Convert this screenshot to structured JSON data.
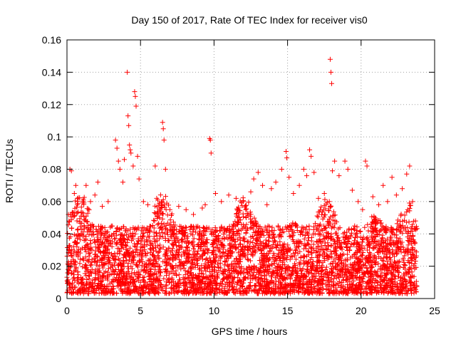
{
  "chart_data": {
    "type": "scatter",
    "title": "Day 150 of 2017, Rate Of TEC Index for receiver vis0",
    "xlabel": "GPS time / hours",
    "ylabel": "ROTI / TECUs",
    "xlim": [
      0,
      25
    ],
    "ylim": [
      0,
      0.16
    ],
    "xticks": [
      0,
      5,
      10,
      15,
      20,
      25
    ],
    "yticks": [
      0,
      0.02,
      0.04,
      0.06,
      0.08,
      0.1,
      0.12,
      0.14,
      0.16
    ],
    "xtick_labels": [
      "0",
      "5",
      "10",
      "15",
      "20",
      "25"
    ],
    "ytick_labels": [
      "0",
      "0.02",
      "0.04",
      "0.06",
      "0.08",
      "0.1",
      "0.12",
      "0.14",
      "0.16"
    ],
    "grid": true,
    "marker": "+",
    "marker_color": "#ff0000",
    "series": [
      {
        "name": "ROTI",
        "points": [
          [
            0.1,
            0.052
          ],
          [
            0.2,
            0.08
          ],
          [
            0.3,
            0.079
          ],
          [
            0.5,
            0.065
          ],
          [
            0.6,
            0.07
          ],
          [
            0.7,
            0.058
          ],
          [
            1.3,
            0.07
          ],
          [
            1.6,
            0.06
          ],
          [
            1.9,
            0.064
          ],
          [
            2.1,
            0.072
          ],
          [
            2.4,
            0.057
          ],
          [
            2.8,
            0.06
          ],
          [
            3.3,
            0.098
          ],
          [
            3.4,
            0.093
          ],
          [
            3.5,
            0.085
          ],
          [
            3.6,
            0.08
          ],
          [
            3.8,
            0.072
          ],
          [
            3.9,
            0.086
          ],
          [
            4.1,
            0.14
          ],
          [
            4.15,
            0.113
          ],
          [
            4.2,
            0.107
          ],
          [
            4.25,
            0.095
          ],
          [
            4.3,
            0.092
          ],
          [
            4.35,
            0.09
          ],
          [
            4.5,
            0.082
          ],
          [
            4.6,
            0.128
          ],
          [
            4.65,
            0.125
          ],
          [
            4.7,
            0.119
          ],
          [
            4.8,
            0.088
          ],
          [
            4.9,
            0.074
          ],
          [
            5.2,
            0.06
          ],
          [
            5.5,
            0.058
          ],
          [
            6.0,
            0.082
          ],
          [
            6.1,
            0.062
          ],
          [
            6.3,
            0.05
          ],
          [
            6.5,
            0.109
          ],
          [
            6.55,
            0.105
          ],
          [
            6.6,
            0.098
          ],
          [
            6.7,
            0.08
          ],
          [
            7.0,
            0.055
          ],
          [
            7.6,
            0.057
          ],
          [
            8.1,
            0.055
          ],
          [
            8.6,
            0.052
          ],
          [
            9.2,
            0.056
          ],
          [
            9.4,
            0.058
          ],
          [
            9.7,
            0.099
          ],
          [
            9.75,
            0.098
          ],
          [
            9.8,
            0.09
          ],
          [
            10.1,
            0.065
          ],
          [
            10.5,
            0.06
          ],
          [
            11.0,
            0.064
          ],
          [
            11.5,
            0.062
          ],
          [
            12.0,
            0.06
          ],
          [
            12.5,
            0.066
          ],
          [
            12.7,
            0.074
          ],
          [
            13.0,
            0.078
          ],
          [
            13.3,
            0.07
          ],
          [
            13.6,
            0.058
          ],
          [
            13.9,
            0.068
          ],
          [
            14.2,
            0.072
          ],
          [
            14.6,
            0.08
          ],
          [
            14.9,
            0.091
          ],
          [
            14.95,
            0.087
          ],
          [
            15.1,
            0.075
          ],
          [
            15.4,
            0.065
          ],
          [
            15.8,
            0.07
          ],
          [
            16.1,
            0.08
          ],
          [
            16.3,
            0.076
          ],
          [
            16.5,
            0.092
          ],
          [
            16.6,
            0.088
          ],
          [
            16.8,
            0.078
          ],
          [
            17.1,
            0.062
          ],
          [
            17.5,
            0.065
          ],
          [
            17.9,
            0.148
          ],
          [
            17.95,
            0.14
          ],
          [
            18.0,
            0.133
          ],
          [
            18.05,
            0.079
          ],
          [
            18.2,
            0.085
          ],
          [
            18.5,
            0.076
          ],
          [
            18.9,
            0.085
          ],
          [
            19.1,
            0.08
          ],
          [
            19.4,
            0.067
          ],
          [
            19.8,
            0.06
          ],
          [
            20.1,
            0.055
          ],
          [
            20.3,
            0.085
          ],
          [
            20.4,
            0.082
          ],
          [
            20.8,
            0.063
          ],
          [
            21.2,
            0.058
          ],
          [
            21.5,
            0.07
          ],
          [
            21.8,
            0.06
          ],
          [
            22.1,
            0.075
          ],
          [
            22.4,
            0.064
          ],
          [
            22.8,
            0.068
          ],
          [
            23.1,
            0.077
          ],
          [
            23.3,
            0.082
          ],
          [
            23.5,
            0.06
          ],
          [
            23.7,
            0.048
          ]
        ]
      }
    ],
    "dense_band": {
      "x_range": [
        0,
        23.8
      ],
      "y_floor": 0.003,
      "y_typical_max": 0.045,
      "y_local_max": 0.065,
      "color": "#ff0000"
    }
  }
}
